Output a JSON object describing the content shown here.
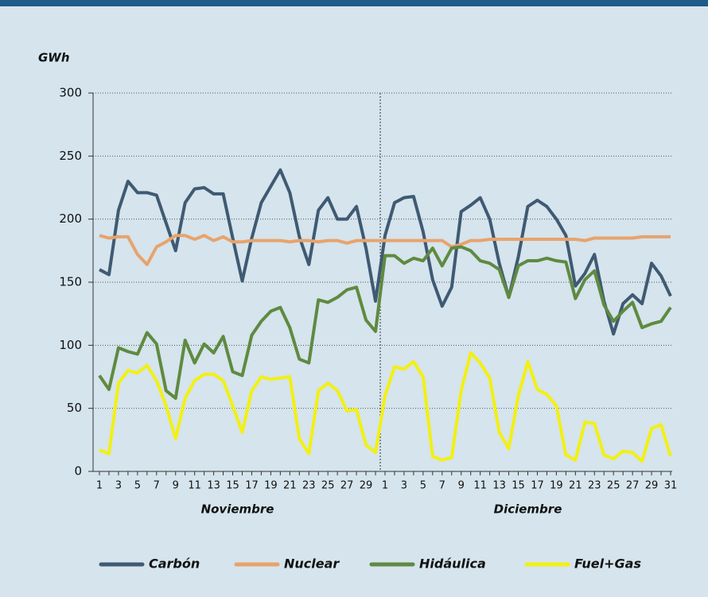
{
  "chart_data": {
    "type": "line",
    "y_label": "GWh",
    "categories": [
      "1",
      null,
      "3",
      null,
      "5",
      null,
      "7",
      null,
      "9",
      null,
      "11",
      null,
      "13",
      null,
      "15",
      null,
      "17",
      null,
      "19",
      null,
      "21",
      null,
      "23",
      null,
      "25",
      null,
      "27",
      null,
      "29",
      null,
      "1",
      null,
      "3",
      null,
      "5",
      null,
      "7",
      null,
      "9",
      null,
      "11",
      null,
      "13",
      null,
      "15",
      null,
      "17",
      null,
      "19",
      null,
      "21",
      null,
      "23",
      null,
      "25",
      null,
      "27",
      null,
      "29",
      null,
      "31"
    ],
    "x_groups": [
      "Noviembre",
      "Diciembre"
    ],
    "ylim": [
      0,
      300
    ],
    "yticks": [
      0,
      50,
      100,
      150,
      200,
      250,
      300
    ],
    "grid": true,
    "legend": "bottom",
    "series": [
      {
        "name": "Carbón",
        "color": "#3f5a72",
        "values": [
          160,
          156,
          207,
          230,
          221,
          221,
          219,
          197,
          175,
          213,
          224,
          225,
          220,
          220,
          185,
          151,
          185,
          213,
          226,
          239,
          221,
          186,
          164,
          207,
          217,
          200,
          200,
          210,
          177,
          135,
          187,
          213,
          217,
          218,
          190,
          152,
          131,
          146,
          206,
          211,
          217,
          200,
          165,
          138,
          170,
          210,
          215,
          210,
          200,
          187,
          147,
          157,
          172,
          135,
          109,
          133,
          140,
          133,
          165,
          155,
          139
        ]
      },
      {
        "name": "Nuclear",
        "color": "#e8a36c",
        "values": [
          187,
          185,
          186,
          186,
          172,
          164,
          178,
          182,
          187,
          187,
          184,
          187,
          183,
          186,
          182,
          182,
          183,
          183,
          183,
          183,
          182,
          183,
          183,
          182,
          183,
          183,
          181,
          183,
          183,
          183,
          183,
          183,
          183,
          183,
          183,
          183,
          183,
          178,
          180,
          183,
          183,
          184,
          184,
          184,
          184,
          184,
          184,
          184,
          184,
          184,
          184,
          183,
          185,
          185,
          185,
          185,
          185,
          186,
          186,
          186,
          186
        ]
      },
      {
        "name": "Hidáulica",
        "color": "#5f8a40",
        "values": [
          76,
          65,
          98,
          95,
          93,
          110,
          101,
          64,
          58,
          104,
          86,
          101,
          94,
          107,
          79,
          76,
          108,
          119,
          127,
          130,
          114,
          89,
          86,
          136,
          134,
          138,
          144,
          146,
          120,
          111,
          171,
          171,
          165,
          169,
          167,
          177,
          163,
          177,
          178,
          175,
          167,
          165,
          160,
          138,
          163,
          167,
          167,
          169,
          167,
          166,
          137,
          152,
          159,
          132,
          119,
          127,
          134,
          114,
          117,
          119,
          130
        ]
      },
      {
        "name": "Fuel+Gas",
        "color": "#f2f013",
        "values": [
          17,
          14,
          70,
          80,
          78,
          84,
          72,
          52,
          26,
          58,
          72,
          77,
          77,
          72,
          52,
          31,
          64,
          75,
          73,
          74,
          75,
          26,
          14,
          64,
          70,
          64,
          48,
          49,
          21,
          15,
          60,
          83,
          81,
          87,
          75,
          12,
          9,
          11,
          64,
          94,
          86,
          74,
          31,
          18,
          60,
          87,
          65,
          61,
          52,
          13,
          9,
          39,
          38,
          13,
          10,
          16,
          15,
          8,
          34,
          37,
          12
        ]
      }
    ]
  }
}
